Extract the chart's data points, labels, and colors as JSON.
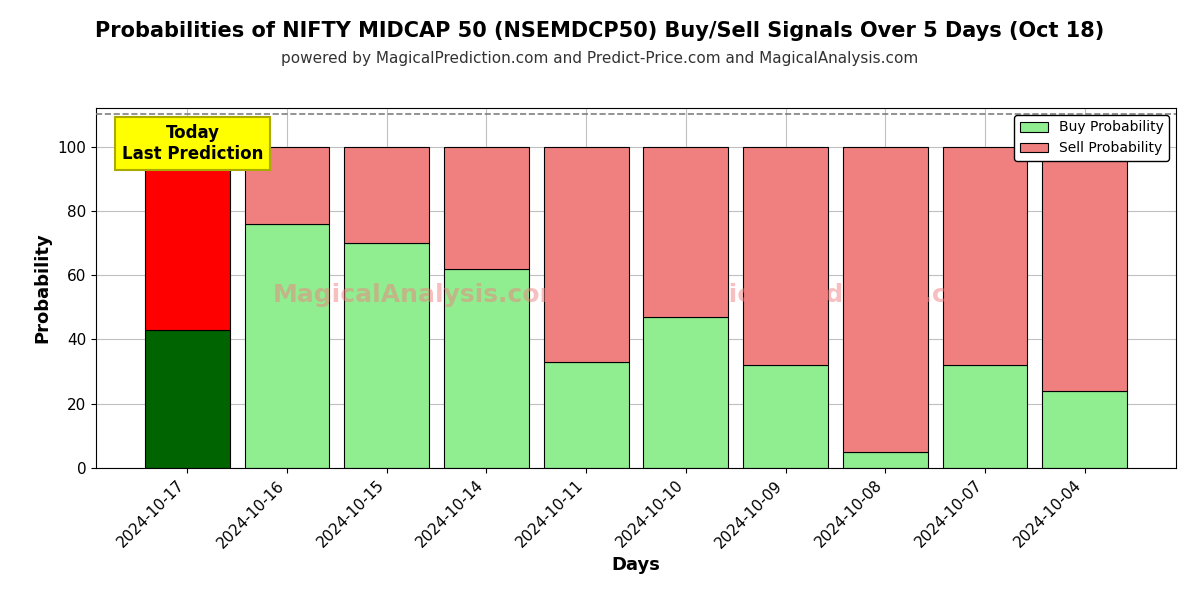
{
  "title": "Probabilities of NIFTY MIDCAP 50 (NSEMDCP50) Buy/Sell Signals Over 5 Days (Oct 18)",
  "subtitle": "powered by MagicalPrediction.com and Predict-Price.com and MagicalAnalysis.com",
  "xlabel": "Days",
  "ylabel": "Probability",
  "categories": [
    "2024-10-17",
    "2024-10-16",
    "2024-10-15",
    "2024-10-14",
    "2024-10-11",
    "2024-10-10",
    "2024-10-09",
    "2024-10-08",
    "2024-10-07",
    "2024-10-04"
  ],
  "buy_values": [
    43,
    76,
    70,
    62,
    33,
    47,
    32,
    5,
    32,
    24
  ],
  "sell_values": [
    57,
    24,
    30,
    38,
    67,
    53,
    68,
    95,
    68,
    76
  ],
  "buy_color_today": "#006400",
  "sell_color_today": "#FF0000",
  "buy_color_normal": "#90EE90",
  "sell_color_normal": "#F08080",
  "bar_edge_color": "#000000",
  "ylim": [
    0,
    112
  ],
  "yticks": [
    0,
    20,
    40,
    60,
    80,
    100
  ],
  "dashed_line_y": 110,
  "today_label": "Today\nLast Prediction",
  "today_box_color": "#FFFF00",
  "legend_buy_label": "Buy Probability",
  "legend_sell_label": "Sell Probability",
  "grid_color": "#C0C0C0",
  "background_color": "#FFFFFF",
  "title_fontsize": 15,
  "subtitle_fontsize": 11,
  "axis_label_fontsize": 13,
  "tick_fontsize": 11,
  "bar_width": 0.85
}
